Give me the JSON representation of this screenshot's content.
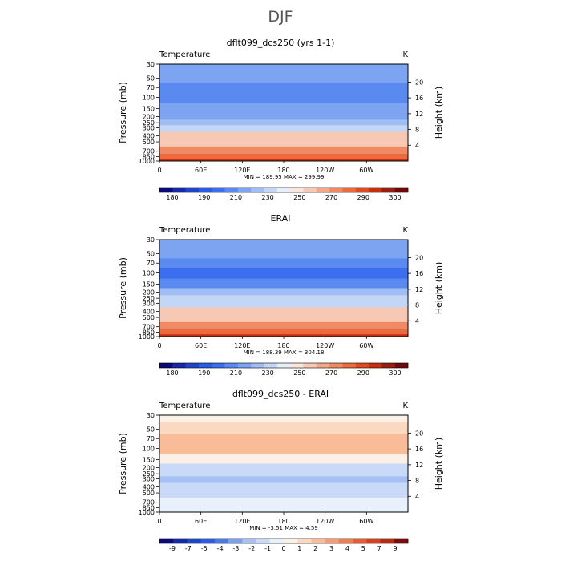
{
  "page_title": "DJF",
  "colors": {
    "temp_scale": [
      "#0a0a78",
      "#1428a8",
      "#1e46c8",
      "#2a5ae6",
      "#3c6ef0",
      "#5a8af0",
      "#7ca4f0",
      "#a0bef4",
      "#c4d6f6",
      "#e6eefa",
      "#fbe6dc",
      "#f7c9b4",
      "#f4a88a",
      "#f08a64",
      "#ec6a40",
      "#e04a22",
      "#c82e10",
      "#962010",
      "#6e0a0a"
    ],
    "diff_scale": [
      "#0a0a78",
      "#1428a8",
      "#1e46c8",
      "#2a5ae6",
      "#4a7ae6",
      "#7aa0ee",
      "#a6c0f4",
      "#c8daf8",
      "#e8f0fc",
      "#fcf0e6",
      "#fbd8c0",
      "#f8bc98",
      "#f69c72",
      "#f07c50",
      "#ea5c30",
      "#d8401c",
      "#b82a10",
      "#7a0c0a"
    ]
  },
  "chart_data": [
    {
      "type": "heatmap",
      "title": "dflt099_dcs250 (yrs 1-1)",
      "field_label": "Temperature",
      "units": "K",
      "ylabel": "Pressure (mb)",
      "ylabel_right": "Height (km)",
      "x_ticks": [
        "0",
        "60E",
        "120E",
        "180",
        "120W",
        "60W"
      ],
      "pressure_ticks": [
        "30",
        "50",
        "70",
        "100",
        "150",
        "200",
        "250",
        "300",
        "400",
        "500",
        "700",
        "850",
        "1000"
      ],
      "height_ticks": [
        "20",
        "16",
        "12",
        "8",
        "4"
      ],
      "minmax": "MIN = 189.95   MAX = 299.99",
      "colorbar_labels": [
        "180",
        "190",
        "210",
        "230",
        "250",
        "270",
        "290",
        "300"
      ],
      "profile": [
        {
          "p": 30,
          "v": 219
        },
        {
          "p": 50,
          "v": 214
        },
        {
          "p": 70,
          "v": 207
        },
        {
          "p": 100,
          "v": 203
        },
        {
          "p": 150,
          "v": 210
        },
        {
          "p": 200,
          "v": 219
        },
        {
          "p": 250,
          "v": 228
        },
        {
          "p": 300,
          "v": 236
        },
        {
          "p": 400,
          "v": 250
        },
        {
          "p": 500,
          "v": 258
        },
        {
          "p": 700,
          "v": 272
        },
        {
          "p": 850,
          "v": 281
        },
        {
          "p": 1000,
          "v": 291
        }
      ]
    },
    {
      "type": "heatmap",
      "title": "ERAI",
      "field_label": "Temperature",
      "units": "K",
      "ylabel": "Pressure (mb)",
      "ylabel_right": "Height (km)",
      "x_ticks": [
        "0",
        "60E",
        "120E",
        "180",
        "120W",
        "60W"
      ],
      "pressure_ticks": [
        "30",
        "50",
        "70",
        "100",
        "150",
        "200",
        "250",
        "300",
        "400",
        "500",
        "700",
        "850",
        "1000"
      ],
      "height_ticks": [
        "20",
        "16",
        "12",
        "8",
        "4"
      ],
      "minmax": "MIN = 188.39   MAX = 304.18",
      "colorbar_labels": [
        "180",
        "190",
        "210",
        "230",
        "250",
        "270",
        "290",
        "300"
      ],
      "profile": [
        {
          "p": 30,
          "v": 215
        },
        {
          "p": 50,
          "v": 211
        },
        {
          "p": 70,
          "v": 205
        },
        {
          "p": 100,
          "v": 199
        },
        {
          "p": 150,
          "v": 208
        },
        {
          "p": 200,
          "v": 220
        },
        {
          "p": 250,
          "v": 230
        },
        {
          "p": 300,
          "v": 238
        },
        {
          "p": 400,
          "v": 251
        },
        {
          "p": 500,
          "v": 259
        },
        {
          "p": 700,
          "v": 273
        },
        {
          "p": 850,
          "v": 282
        },
        {
          "p": 1000,
          "v": 293
        }
      ]
    },
    {
      "type": "heatmap",
      "title": "dflt099_dcs250 - ERAI",
      "field_label": "Temperature",
      "units": "K",
      "ylabel": "Pressure (mb)",
      "ylabel_right": "Height (km)",
      "x_ticks": [
        "0",
        "60E",
        "120E",
        "180",
        "120W",
        "60W"
      ],
      "pressure_ticks": [
        "30",
        "50",
        "70",
        "100",
        "150",
        "200",
        "250",
        "300",
        "400",
        "500",
        "700",
        "850",
        "1000"
      ],
      "height_ticks": [
        "20",
        "16",
        "12",
        "8",
        "4"
      ],
      "minmax": "MIN =   -3.51   MAX =    4.59",
      "colorbar_labels": [
        "-9",
        "-7",
        "-5",
        "-4",
        "-3",
        "-2",
        "-1",
        "0",
        "1",
        "2",
        "3",
        "4",
        "5",
        "7",
        "9"
      ],
      "profile": [
        {
          "p": 30,
          "v": 0.5
        },
        {
          "p": 50,
          "v": 1.5
        },
        {
          "p": 70,
          "v": 2.6
        },
        {
          "p": 100,
          "v": 2.2
        },
        {
          "p": 150,
          "v": 0.2
        },
        {
          "p": 200,
          "v": -1.2
        },
        {
          "p": 250,
          "v": -1.8
        },
        {
          "p": 300,
          "v": -2.2
        },
        {
          "p": 400,
          "v": -1.6
        },
        {
          "p": 500,
          "v": -1.1
        },
        {
          "p": 700,
          "v": -0.5
        },
        {
          "p": 850,
          "v": -0.2
        },
        {
          "p": 1000,
          "v": -0.4
        }
      ]
    }
  ]
}
